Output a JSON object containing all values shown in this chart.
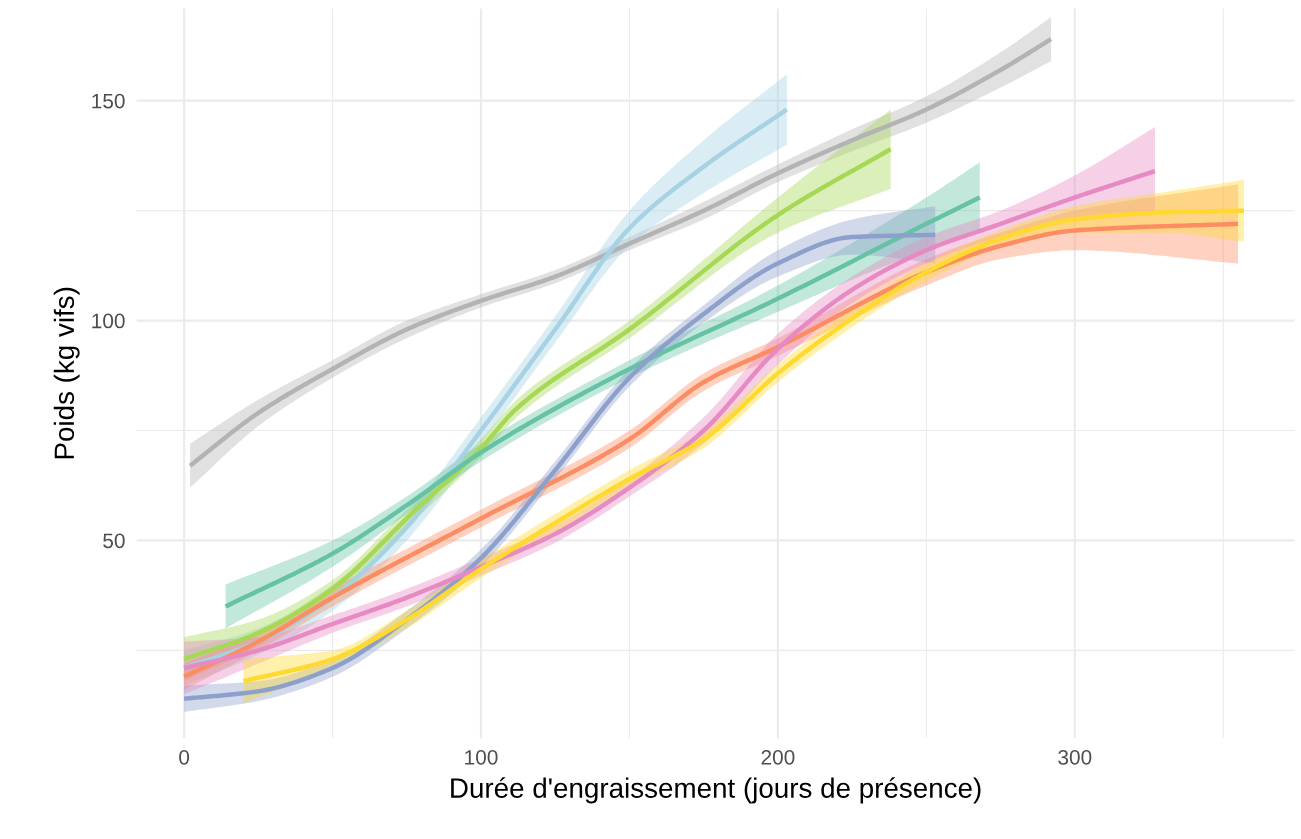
{
  "chart_data": {
    "type": "line",
    "xlabel": "Durée d'engraissement (jours de présence)",
    "ylabel": "Poids (kg vifs)",
    "xlim": [
      -16,
      374
    ],
    "ylim": [
      5,
      171
    ],
    "xticks": [
      0,
      {
        "value": 50,
        "label": null
      },
      100,
      {
        "value": 150,
        "label": null
      },
      200,
      {
        "value": 250,
        "label": null
      },
      300,
      {
        "value": 350,
        "label": null
      }
    ],
    "yticks": [
      {
        "value": 25,
        "label": null
      },
      50,
      {
        "value": 75,
        "label": null
      },
      100,
      {
        "value": 125,
        "label": null
      },
      150
    ],
    "grid": true,
    "marker": "none",
    "line_style": "solid",
    "series": [
      {
        "color": "#b3b3b3",
        "x": [
          2,
          25,
          50,
          75,
          100,
          125,
          150,
          175,
          200,
          225,
          250,
          275,
          292
        ],
        "values": [
          67,
          79,
          89,
          98,
          104.5,
          110,
          117.5,
          125,
          133.5,
          141,
          148,
          157,
          164
        ],
        "lower": [
          62,
          76,
          87,
          96,
          103,
          108.5,
          116,
          123,
          131.5,
          138.5,
          145,
          153,
          159
        ],
        "upper": [
          72,
          82,
          91,
          100,
          106,
          111.5,
          119,
          127,
          135.5,
          143.5,
          151,
          161,
          169
        ]
      },
      {
        "color": "#a6d2e3",
        "x": [
          0,
          25,
          50,
          75,
          100,
          125,
          150,
          175,
          203
        ],
        "values": [
          21,
          27,
          37,
          53,
          75,
          98,
          121,
          135,
          148
        ],
        "lower": [
          17,
          24,
          34,
          50,
          72,
          95,
          117,
          129,
          140
        ],
        "upper": [
          25,
          30,
          40,
          56,
          78,
          101,
          125,
          141,
          156
        ]
      },
      {
        "color": "#a6d854",
        "x": [
          0,
          25,
          50,
          75,
          100,
          112,
          150,
          200,
          238
        ],
        "values": [
          23,
          29,
          39,
          55,
          71,
          80,
          98,
          124,
          139
        ],
        "lower": [
          18,
          26,
          37,
          53,
          69,
          78,
          96,
          120,
          130
        ],
        "upper": [
          28,
          32,
          41,
          57,
          73,
          82,
          100,
          128,
          148
        ]
      },
      {
        "color": "#66c2a5",
        "x": [
          14,
          50,
          75,
          100,
          150,
          200,
          250,
          268
        ],
        "values": [
          35,
          47,
          58,
          70,
          89,
          105,
          122,
          128
        ],
        "lower": [
          30,
          44,
          56,
          68,
          87,
          102,
          116,
          120
        ],
        "upper": [
          40,
          50,
          60,
          72,
          91,
          108,
          128,
          136
        ]
      },
      {
        "color": "#fc8d62",
        "x": [
          0,
          25,
          50,
          100,
          150,
          175,
          200,
          250,
          275,
          300,
          355
        ],
        "values": [
          19,
          27,
          37,
          55,
          73,
          86,
          94,
          111,
          117,
          120.5,
          122
        ],
        "lower": [
          16,
          25,
          35,
          53,
          71,
          84,
          92,
          108,
          114,
          116,
          113
        ],
        "upper": [
          22,
          29,
          39,
          57,
          75,
          88,
          96,
          114,
          120,
          125,
          131
        ]
      },
      {
        "color": "#8da0cb",
        "x": [
          0,
          25,
          50,
          75,
          100,
          125,
          150,
          175,
          200,
          225,
          253
        ],
        "values": [
          14,
          15.7,
          21,
          32,
          46,
          66,
          87,
          101.5,
          113,
          119,
          119.5
        ],
        "lower": [
          11,
          13.5,
          19,
          30,
          44,
          64,
          85,
          99.5,
          110,
          115,
          113
        ],
        "upper": [
          17,
          18,
          23,
          34,
          48,
          68,
          89,
          103.5,
          116,
          123,
          126
        ]
      },
      {
        "color": "#e78ac3",
        "x": [
          0,
          25,
          50,
          75,
          100,
          125,
          150,
          175,
          200,
          225,
          250,
          275,
          300,
          327
        ],
        "values": [
          21,
          25,
          31,
          37,
          44,
          51.5,
          62,
          75,
          93.6,
          107,
          116,
          122,
          128,
          134
        ],
        "lower": [
          15,
          22,
          29,
          35,
          42,
          49.5,
          60,
          72,
          90,
          104,
          113,
          119,
          123,
          124
        ],
        "upper": [
          27,
          28,
          33,
          39,
          46,
          53.5,
          64,
          78,
          97,
          110,
          119,
          125,
          133,
          144
        ]
      },
      {
        "color": "#ffd92f",
        "x": [
          20,
          50,
          75,
          100,
          125,
          150,
          175,
          200,
          225,
          250,
          275,
          300,
          330,
          357
        ],
        "values": [
          18,
          23,
          32,
          43.5,
          54,
          64,
          73,
          88,
          100.5,
          111,
          118.6,
          123,
          124.6,
          125
        ],
        "lower": [
          13,
          21,
          30,
          41.5,
          52,
          62,
          71,
          86,
          98.5,
          109,
          116.6,
          120,
          120,
          118
        ],
        "upper": [
          23,
          25,
          34,
          45.5,
          56,
          66,
          75,
          90,
          102.5,
          113,
          120.6,
          126,
          129.2,
          132
        ]
      }
    ]
  }
}
